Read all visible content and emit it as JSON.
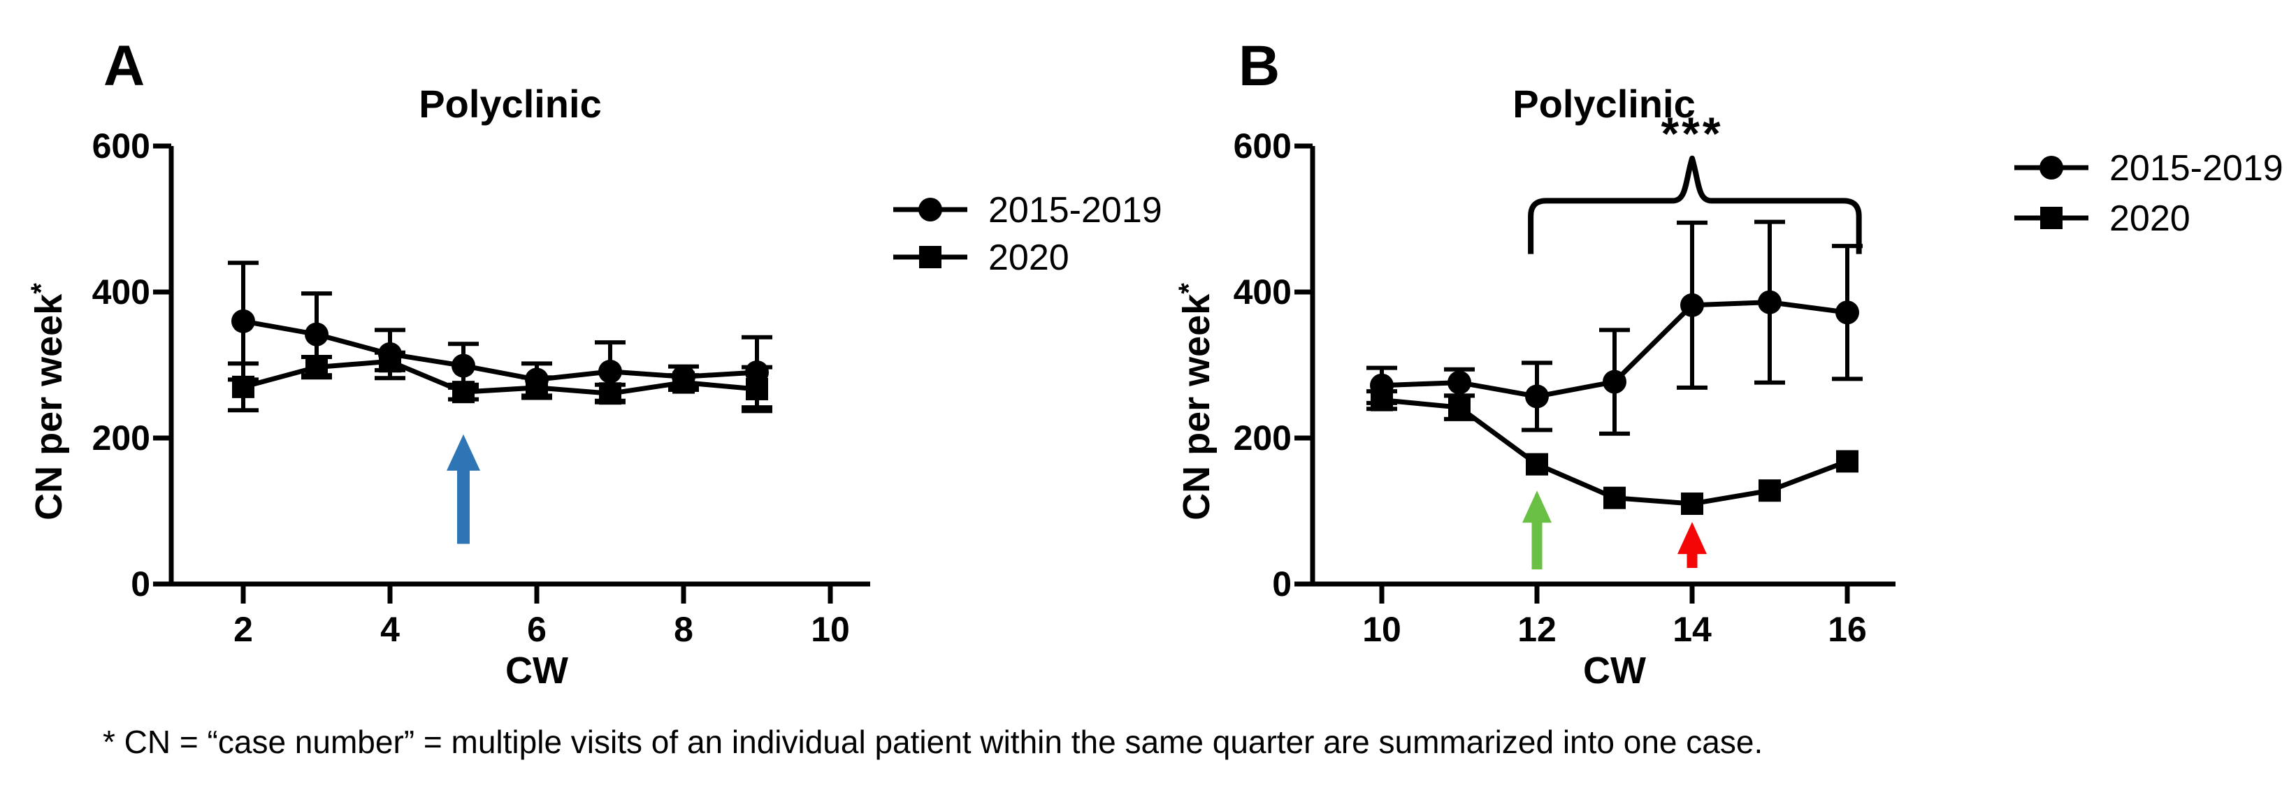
{
  "figure": {
    "background": "#ffffff",
    "footnote": "* CN = “case number” = multiple visits of an individual patient within the same quarter are summarized into one case."
  },
  "legend": {
    "items": [
      {
        "label": "2015-2019",
        "marker": "circle"
      },
      {
        "label": "2020",
        "marker": "square"
      }
    ]
  },
  "colors": {
    "series": "#000000",
    "arrow_blue": "#2e75b6",
    "arrow_green": "#6abf45",
    "arrow_red": "#f40606"
  },
  "chart_data": [
    {
      "type": "line",
      "panel_label": "A",
      "title": "Polyclinic",
      "xlabel": "CW",
      "ylabel": "CN per week",
      "ylabel_superscript": "*",
      "xlim": [
        1,
        10.5
      ],
      "ylim": [
        0,
        600
      ],
      "x_ticks": [
        2,
        4,
        6,
        8,
        10
      ],
      "y_ticks": [
        0,
        200,
        400,
        600
      ],
      "grid": false,
      "x": [
        2,
        3,
        4,
        5,
        6,
        7,
        8,
        9
      ],
      "series": [
        {
          "name": "2015-2019",
          "marker": "circle",
          "values": [
            360,
            342,
            315,
            299,
            280,
            291,
            284,
            290
          ],
          "sd": [
            80,
            56,
            33,
            30,
            22,
            40,
            14,
            48
          ]
        },
        {
          "name": "2020",
          "marker": "square",
          "values": [
            270,
            297,
            305,
            263,
            269,
            261,
            276,
            267
          ],
          "sd": [
            32,
            14,
            12,
            10,
            14,
            12,
            10,
            30
          ]
        }
      ],
      "arrows": [
        {
          "name": "blue-arrow",
          "x": 5,
          "y_base": 55,
          "y_tip": 205,
          "color_key": "arrow_blue",
          "shaft_w": 18,
          "head_w": 48,
          "head_h": 52
        }
      ]
    },
    {
      "type": "line",
      "panel_label": "B",
      "title": "Polyclinic",
      "xlabel": "CW",
      "ylabel": "CN per week",
      "ylabel_superscript": "*",
      "xlim": [
        9,
        17
      ],
      "ylim": [
        0,
        600
      ],
      "x_ticks": [
        10,
        12,
        14,
        16
      ],
      "y_ticks": [
        0,
        200,
        400,
        600
      ],
      "grid": false,
      "x": [
        10,
        11,
        12,
        13,
        14,
        15,
        16
      ],
      "series": [
        {
          "name": "2015-2019",
          "marker": "circle",
          "values": [
            272,
            276,
            257,
            277,
            382,
            386,
            372
          ],
          "sd": [
            24,
            18,
            46,
            71,
            113,
            110,
            91
          ]
        },
        {
          "name": "2020",
          "marker": "square",
          "values": [
            252,
            242,
            164,
            118,
            110,
            128,
            168
          ],
          "sd": [
            12,
            16,
            0,
            0,
            0,
            0,
            0
          ]
        }
      ],
      "arrows": [
        {
          "name": "green-arrow",
          "x": 12,
          "y_base": 20,
          "y_tip": 128,
          "color_key": "arrow_green",
          "shaft_w": 15,
          "head_w": 42,
          "head_h": 46
        },
        {
          "name": "red-arrow",
          "x": 14,
          "y_base": 22,
          "y_tip": 85,
          "color_key": "arrow_red",
          "shaft_w": 15,
          "head_w": 42,
          "head_h": 46
        }
      ],
      "significance": {
        "label": "***",
        "x_start": 11.92,
        "x_end": 16.15,
        "x_peak": 14,
        "y_bar": 525,
        "y_end": 452,
        "y_peak": 583
      }
    }
  ]
}
